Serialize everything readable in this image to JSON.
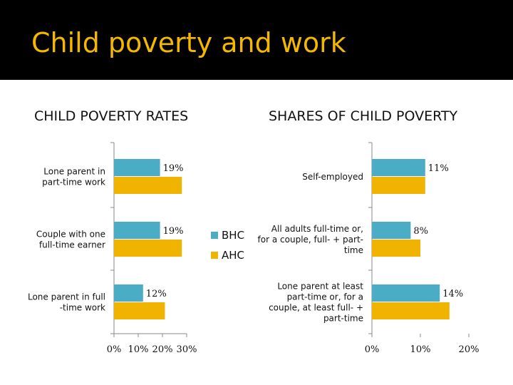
{
  "slide": {
    "title": "Child poverty and work"
  },
  "chart_data": [
    {
      "type": "bar",
      "orientation": "horizontal",
      "title": "CHILD POVERTY RATES",
      "categories": [
        [
          "Lone parent in",
          "part-time work"
        ],
        [
          "Couple with one",
          "full-time earner"
        ],
        [
          "Lone parent in full",
          "-time work"
        ]
      ],
      "series": [
        {
          "name": "BHC",
          "values": [
            19,
            19,
            12
          ],
          "data_labels": [
            "19%",
            "19%",
            "12%"
          ]
        },
        {
          "name": "AHC",
          "values": [
            28,
            28,
            21
          ]
        }
      ],
      "xlim": [
        0,
        30
      ],
      "xticks": [
        0,
        10,
        20,
        30
      ],
      "xtick_labels": [
        "0%",
        "10%",
        "20%",
        "30%"
      ],
      "grid": false,
      "legend": {
        "position": "right",
        "entries": [
          "BHC",
          "AHC"
        ]
      }
    },
    {
      "type": "bar",
      "orientation": "horizontal",
      "title": "SHARES OF CHILD POVERTY",
      "categories": [
        [
          "Self-employed"
        ],
        [
          "All adults full-time or,",
          "for a couple, full- + part-",
          "time"
        ],
        [
          "Lone parent at least",
          "part-time or, for a",
          "couple, at least full- +",
          "part-time"
        ]
      ],
      "series": [
        {
          "name": "BHC",
          "values": [
            11,
            8,
            14
          ],
          "data_labels": [
            "11%",
            "8%",
            "14%"
          ]
        },
        {
          "name": "AHC",
          "values": [
            11,
            10,
            16
          ]
        }
      ],
      "xlim": [
        0,
        20
      ],
      "xticks": [
        0,
        10,
        20
      ],
      "xtick_labels": [
        "0%",
        "10%",
        "20%"
      ],
      "grid": false
    }
  ],
  "colors": {
    "BHC": "#4bacc6",
    "AHC": "#f0b400",
    "title": "#f5b800",
    "axis": "#888888"
  }
}
